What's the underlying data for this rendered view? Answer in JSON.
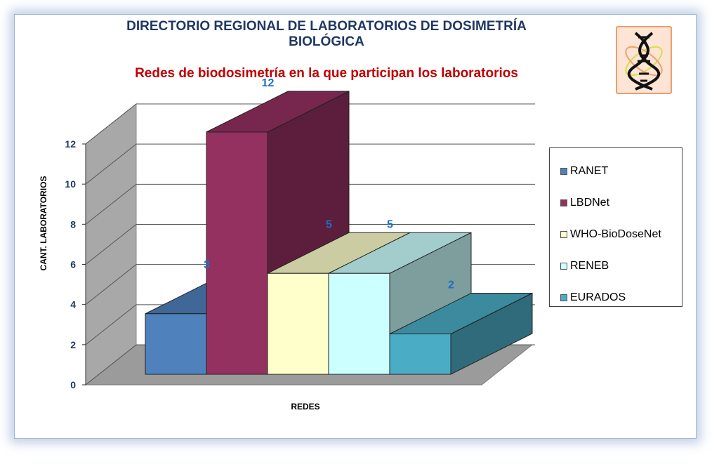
{
  "header": {
    "title_line1": "DIRECTORIO REGIONAL DE LABORATORIOS DE DOSIMETRÍA",
    "title_line2": "BIOLÓGICA",
    "subtitle": "Redes de biodosimetría en la que participan los laboratorios"
  },
  "logo": {
    "icon": "dna-helix-icon"
  },
  "chart_data": {
    "type": "bar",
    "title": "DIRECTORIO REGIONAL DE LABORATORIOS DE DOSIMETRÍA BIOLÓGICA",
    "subtitle": "Redes de biodosimetría en la que participan los laboratorios",
    "xlabel": "REDES",
    "ylabel": "CANT. LABORATORIOS",
    "categories": [
      "RANET",
      "LBDNet",
      "WHO-BioDoseNet",
      "RENEB",
      "EURADOS"
    ],
    "values": [
      3,
      12,
      5,
      5,
      2
    ],
    "data_labels": [
      "3",
      "12",
      "5",
      "5",
      "2"
    ],
    "ylim": [
      0,
      12
    ],
    "yticks": [
      "0",
      "2",
      "4",
      "6",
      "8",
      "10",
      "12"
    ],
    "grid": true,
    "legend_position": "right",
    "three_d": true,
    "colors": [
      "#4f81bd",
      "#953160",
      "#ffffcc",
      "#ccffff",
      "#4bacc6"
    ]
  }
}
